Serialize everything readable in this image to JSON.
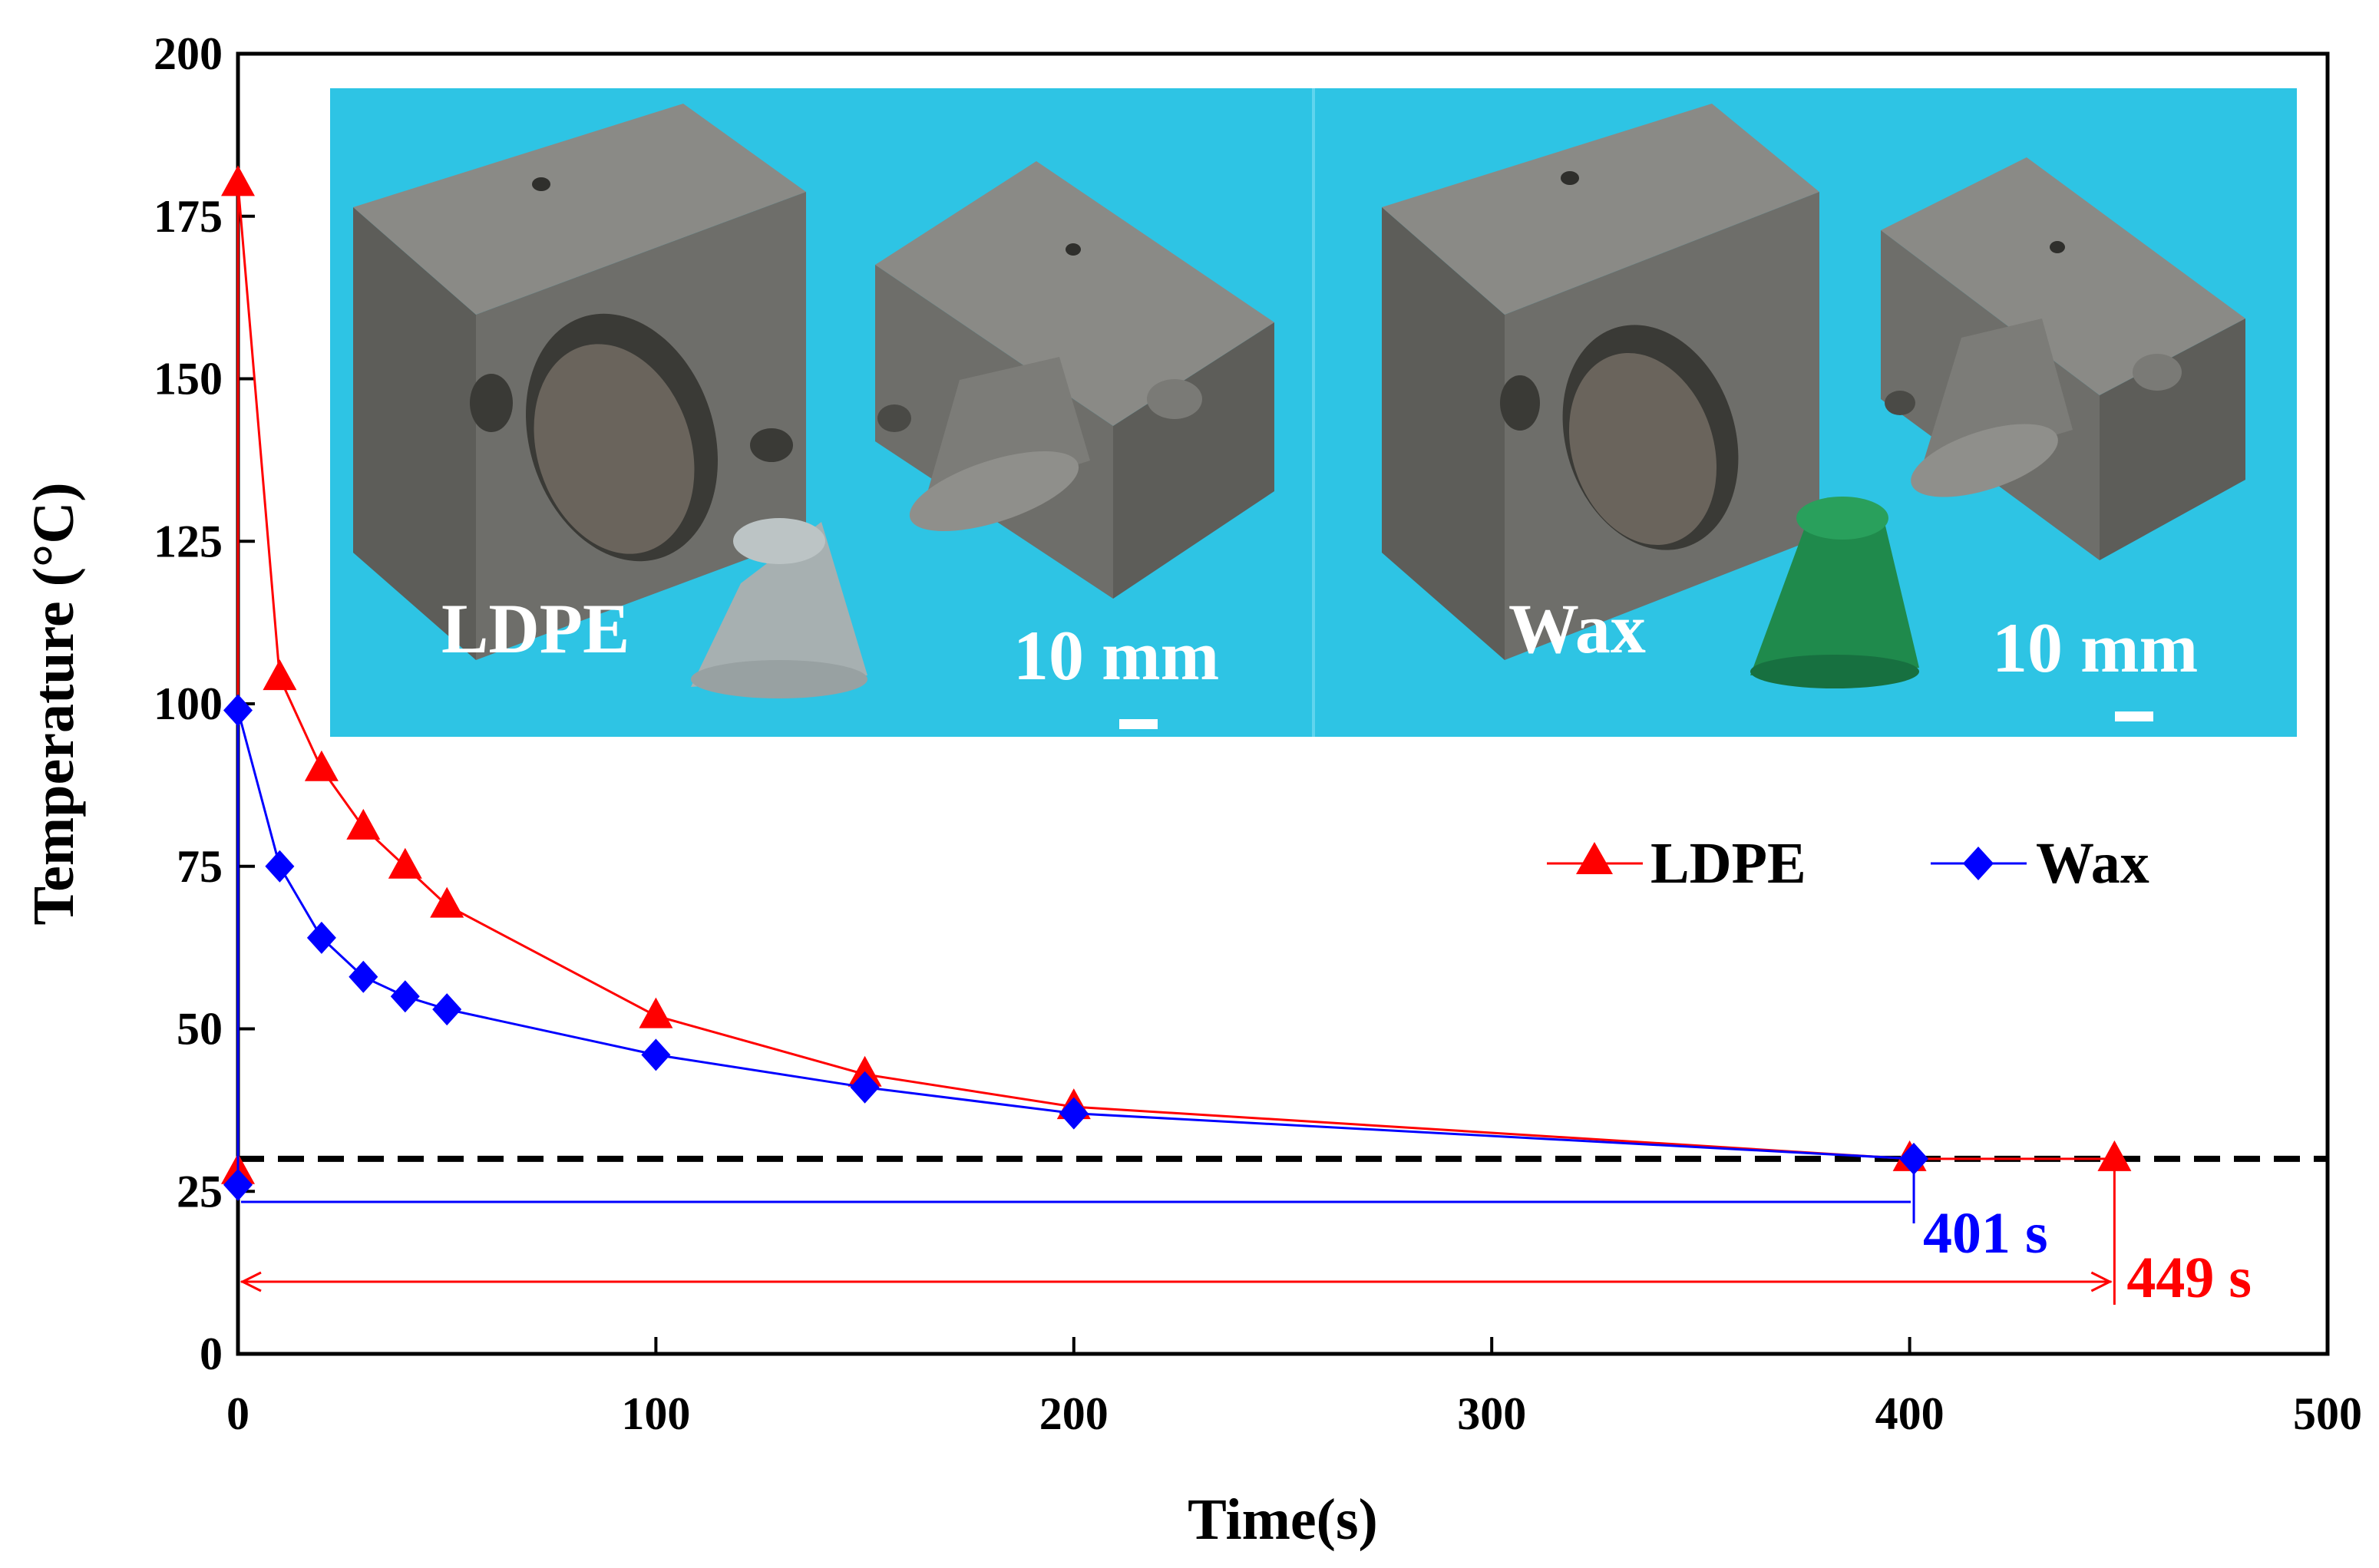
{
  "chart_data": {
    "type": "line",
    "title": "",
    "xlabel": "Time(s)",
    "ylabel": "Temperature (°C)",
    "xlim": [
      0,
      500
    ],
    "ylim": [
      0,
      200
    ],
    "x_ticks": [
      0,
      100,
      200,
      300,
      400,
      500
    ],
    "y_ticks": [
      0,
      25,
      50,
      75,
      100,
      125,
      150,
      175,
      200
    ],
    "grid": false,
    "legend_position": "right-middle",
    "series": [
      {
        "name": "LDPE",
        "color": "#ff0000",
        "marker": "triangle",
        "x": [
          0,
          0,
          10,
          20,
          30,
          40,
          50,
          100,
          150,
          200,
          400,
          449
        ],
        "y": [
          28,
          180,
          104,
          90,
          81,
          75,
          69,
          52,
          43,
          38,
          30,
          30
        ]
      },
      {
        "name": "Wax",
        "color": "#0000ff",
        "marker": "diamond",
        "x": [
          0,
          0,
          10,
          20,
          30,
          40,
          50,
          100,
          150,
          200,
          401
        ],
        "y": [
          26,
          99,
          75,
          64,
          58,
          55,
          53,
          46,
          41,
          37,
          30
        ]
      }
    ],
    "threshold": {
      "y": 30,
      "style": "dashed",
      "color": "#000000"
    },
    "annotations": [
      {
        "text": "401 s",
        "x": 401,
        "color": "#0000ff",
        "series": "Wax"
      },
      {
        "text": "449 s",
        "x": 449,
        "color": "#ff0000",
        "series": "LDPE"
      }
    ],
    "inset": {
      "background": "#2ec4e4",
      "panels": [
        {
          "label": "LDPE",
          "scale": "10 mm",
          "part_color": "#a7b0b1"
        },
        {
          "label": "Wax",
          "scale": "10 mm",
          "part_color": "#1f8a4c"
        }
      ]
    }
  }
}
